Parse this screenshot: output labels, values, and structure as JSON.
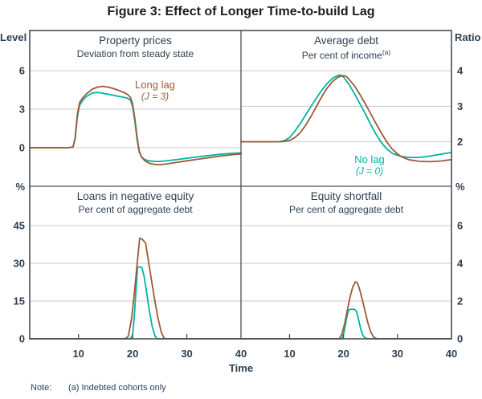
{
  "figure": {
    "title": "Figure 3: Effect of Longer Time-to-build Lag",
    "note_label": "Note:",
    "note_text": "(a) Indebted cohorts only"
  },
  "colors": {
    "long_lag": "#9a5b38",
    "no_lag": "#00b2a2",
    "grid": "#c9c9c9",
    "frame": "#4d4d4d",
    "text": "#2e3f50"
  },
  "annotations": {
    "long_lag": {
      "line1": "Long lag",
      "line2": "(J = 3)"
    },
    "no_lag": {
      "line1": "No lag",
      "line2": "(J = 0)"
    }
  },
  "chart_data": {
    "type": "line",
    "x_axis": {
      "label": "Time",
      "range": [
        1,
        40
      ],
      "ticks": [
        10,
        20,
        30,
        40
      ]
    },
    "legend_position": "annotated-on-chart",
    "grid": "horizontal-only",
    "series_meta": [
      {
        "name": "Long lag (J = 3)",
        "color": "#9a5b38"
      },
      {
        "name": "No lag (J = 0)",
        "color": "#00b2a2"
      }
    ],
    "panels": [
      {
        "title": "Property prices",
        "subtitle": "Deviation from steady state",
        "subtitle_sup": "",
        "unit_label": "Level",
        "unit_side": "left",
        "y_range": [
          -3,
          9.125
        ],
        "y_ticks": [
          0,
          3,
          6
        ],
        "x_ticks": [],
        "series": [
          {
            "name": "No lag (J = 0)",
            "color_key": "no_lag",
            "points": [
              [
                1,
                0
              ],
              [
                8,
                0
              ],
              [
                9,
                0.05
              ],
              [
                9.4,
                0.7
              ],
              [
                9.8,
                2.4
              ],
              [
                10.2,
                3.3
              ],
              [
                10.8,
                3.7
              ],
              [
                11.5,
                4.0
              ],
              [
                12.5,
                4.25
              ],
              [
                13.2,
                4.3
              ],
              [
                14,
                4.28
              ],
              [
                15,
                4.2
              ],
              [
                16,
                4.12
              ],
              [
                17,
                4.03
              ],
              [
                18,
                3.95
              ],
              [
                19,
                3.87
              ],
              [
                19.6,
                3.7
              ],
              [
                20,
                3.2
              ],
              [
                20.4,
                2.1
              ],
              [
                20.8,
                0.7
              ],
              [
                21.2,
                -0.3
              ],
              [
                21.6,
                -0.7
              ],
              [
                22.2,
                -0.92
              ],
              [
                23,
                -1.02
              ],
              [
                24,
                -1.07
              ],
              [
                25,
                -1.07
              ],
              [
                26,
                -1.03
              ],
              [
                28,
                -0.93
              ],
              [
                30,
                -0.82
              ],
              [
                32,
                -0.71
              ],
              [
                34,
                -0.61
              ],
              [
                36,
                -0.52
              ],
              [
                38,
                -0.45
              ],
              [
                40,
                -0.4
              ]
            ]
          },
          {
            "name": "Long lag (J = 3)",
            "color_key": "long_lag",
            "points": [
              [
                1,
                0
              ],
              [
                8,
                0
              ],
              [
                9,
                0.05
              ],
              [
                9.4,
                0.8
              ],
              [
                9.8,
                2.6
              ],
              [
                10.2,
                3.5
              ],
              [
                10.8,
                3.9
              ],
              [
                11.5,
                4.2
              ],
              [
                12.5,
                4.55
              ],
              [
                13.5,
                4.72
              ],
              [
                14.5,
                4.78
              ],
              [
                15.5,
                4.72
              ],
              [
                16.5,
                4.6
              ],
              [
                17.5,
                4.45
              ],
              [
                18.5,
                4.28
              ],
              [
                19.2,
                4.1
              ],
              [
                19.6,
                3.9
              ],
              [
                20,
                3.4
              ],
              [
                20.4,
                2.3
              ],
              [
                20.8,
                0.9
              ],
              [
                21.2,
                -0.2
              ],
              [
                21.6,
                -0.7
              ],
              [
                22.2,
                -1.0
              ],
              [
                23,
                -1.2
              ],
              [
                24,
                -1.3
              ],
              [
                25,
                -1.32
              ],
              [
                26,
                -1.28
              ],
              [
                28,
                -1.15
              ],
              [
                30,
                -1.02
              ],
              [
                32,
                -0.9
              ],
              [
                34,
                -0.78
              ],
              [
                36,
                -0.66
              ],
              [
                38,
                -0.56
              ],
              [
                40,
                -0.48
              ]
            ]
          }
        ]
      },
      {
        "title": "Average debt",
        "subtitle": "Per cent of income",
        "subtitle_sup": "(a)",
        "unit_label": "Ratio",
        "unit_side": "right",
        "y_range": [
          0.75,
          5.13
        ],
        "y_ticks": [
          2,
          3,
          4
        ],
        "x_ticks": [],
        "series": [
          {
            "name": "No lag (J = 0)",
            "color_key": "no_lag",
            "points": [
              [
                1,
                2
              ],
              [
                8,
                2
              ],
              [
                9,
                2.03
              ],
              [
                10,
                2.12
              ],
              [
                11,
                2.3
              ],
              [
                12,
                2.52
              ],
              [
                13,
                2.76
              ],
              [
                14,
                3.0
              ],
              [
                15,
                3.24
              ],
              [
                16,
                3.46
              ],
              [
                17,
                3.65
              ],
              [
                18,
                3.79
              ],
              [
                19,
                3.87
              ],
              [
                19.5,
                3.88
              ],
              [
                20,
                3.82
              ],
              [
                21,
                3.62
              ],
              [
                22,
                3.36
              ],
              [
                23,
                3.08
              ],
              [
                24,
                2.8
              ],
              [
                25,
                2.5
              ],
              [
                26,
                2.22
              ],
              [
                27,
                1.98
              ],
              [
                28,
                1.8
              ],
              [
                29,
                1.68
              ],
              [
                30,
                1.62
              ],
              [
                31,
                1.58
              ],
              [
                32,
                1.56
              ],
              [
                34,
                1.56
              ],
              [
                36,
                1.6
              ],
              [
                38,
                1.65
              ],
              [
                40,
                1.7
              ]
            ]
          },
          {
            "name": "Long lag (J = 3)",
            "color_key": "long_lag",
            "points": [
              [
                1,
                2
              ],
              [
                8,
                2
              ],
              [
                9,
                2.01
              ],
              [
                10,
                2.04
              ],
              [
                11,
                2.12
              ],
              [
                12,
                2.26
              ],
              [
                13,
                2.47
              ],
              [
                14,
                2.72
              ],
              [
                15,
                3.0
              ],
              [
                16,
                3.28
              ],
              [
                17,
                3.52
              ],
              [
                18,
                3.7
              ],
              [
                19,
                3.82
              ],
              [
                20,
                3.86
              ],
              [
                20.5,
                3.84
              ],
              [
                21,
                3.76
              ],
              [
                22,
                3.58
              ],
              [
                23,
                3.34
              ],
              [
                24,
                3.08
              ],
              [
                25,
                2.8
              ],
              [
                26,
                2.52
              ],
              [
                27,
                2.25
              ],
              [
                28,
                2.0
              ],
              [
                29,
                1.8
              ],
              [
                30,
                1.66
              ],
              [
                31,
                1.56
              ],
              [
                32,
                1.5
              ],
              [
                34,
                1.45
              ],
              [
                36,
                1.44
              ],
              [
                38,
                1.46
              ],
              [
                40,
                1.5
              ]
            ]
          }
        ]
      },
      {
        "title": "Loans in negative equity",
        "subtitle": "Per cent of aggregate debt",
        "subtitle_sup": "",
        "unit_label": "%",
        "unit_side": "left",
        "y_range": [
          0,
          60.6
        ],
        "y_ticks": [
          0,
          15,
          30,
          45
        ],
        "x_ticks": [
          10,
          20,
          30,
          40
        ],
        "series": [
          {
            "name": "No lag (J = 0)",
            "color_key": "no_lag",
            "points": [
              [
                1,
                0
              ],
              [
                19.6,
                0
              ],
              [
                20,
                1.5
              ],
              [
                20.3,
                9
              ],
              [
                20.6,
                19
              ],
              [
                20.9,
                28.3
              ],
              [
                21.2,
                28.6
              ],
              [
                21.7,
                28.3
              ],
              [
                22.1,
                25
              ],
              [
                22.6,
                18
              ],
              [
                23.1,
                11
              ],
              [
                23.6,
                5
              ],
              [
                24.1,
                1.2
              ],
              [
                24.5,
                0
              ],
              [
                40,
                0
              ]
            ]
          },
          {
            "name": "Long lag (J = 3)",
            "color_key": "long_lag",
            "points": [
              [
                1,
                0
              ],
              [
                18.6,
                0
              ],
              [
                19.2,
                1
              ],
              [
                19.8,
                8
              ],
              [
                20.3,
                18
              ],
              [
                20.8,
                29
              ],
              [
                21.3,
                40
              ],
              [
                21.8,
                39.5
              ],
              [
                22.4,
                38
              ],
              [
                22.9,
                31
              ],
              [
                23.5,
                23
              ],
              [
                24.1,
                15
              ],
              [
                24.7,
                8
              ],
              [
                25.3,
                2.5
              ],
              [
                25.8,
                0.3
              ],
              [
                26.2,
                0
              ],
              [
                40,
                0
              ]
            ]
          }
        ]
      },
      {
        "title": "Equity shortfall",
        "subtitle": "Per cent of aggregate debt",
        "subtitle_sup": "",
        "unit_label": "%",
        "unit_side": "right",
        "y_range": [
          0,
          8.09
        ],
        "y_ticks": [
          0,
          2,
          4,
          6
        ],
        "x_ticks": [
          10,
          20,
          30,
          40
        ],
        "series": [
          {
            "name": "No lag (J = 0)",
            "color_key": "no_lag",
            "points": [
              [
                1,
                0
              ],
              [
                19.7,
                0
              ],
              [
                20.1,
                0.35
              ],
              [
                20.5,
                1.0
              ],
              [
                20.9,
                1.5
              ],
              [
                21.3,
                1.57
              ],
              [
                22,
                1.56
              ],
              [
                22.4,
                1.45
              ],
              [
                22.8,
                1.0
              ],
              [
                23.2,
                0.5
              ],
              [
                23.6,
                0.18
              ],
              [
                24,
                0.05
              ],
              [
                24.5,
                0
              ],
              [
                40,
                0
              ]
            ]
          },
          {
            "name": "Long lag (J = 3)",
            "color_key": "long_lag",
            "points": [
              [
                1,
                0
              ],
              [
                19.2,
                0
              ],
              [
                19.7,
                0.25
              ],
              [
                20.2,
                0.8
              ],
              [
                20.7,
                1.5
              ],
              [
                21.2,
                2.2
              ],
              [
                21.7,
                2.75
              ],
              [
                22.2,
                3.02
              ],
              [
                22.6,
                2.95
              ],
              [
                23,
                2.6
              ],
              [
                23.5,
                2.05
              ],
              [
                24,
                1.45
              ],
              [
                24.5,
                0.85
              ],
              [
                25,
                0.4
              ],
              [
                25.5,
                0.12
              ],
              [
                26,
                0.02
              ],
              [
                26.5,
                0
              ],
              [
                40,
                0
              ]
            ]
          }
        ]
      }
    ]
  }
}
